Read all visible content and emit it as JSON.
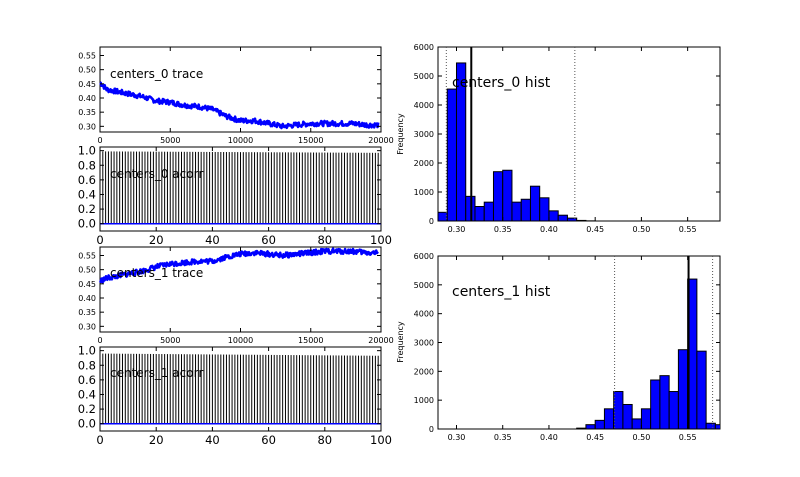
{
  "chart_data": [
    {
      "type": "line",
      "title": "centers_0 trace",
      "xlim": [
        0,
        20000
      ],
      "ylim": [
        0.28,
        0.58
      ],
      "xticks": [
        "0",
        "5000",
        "10000",
        "15000",
        "20000"
      ],
      "yticks": [
        "0.30",
        "0.35",
        "0.40",
        "0.45",
        "0.50",
        "0.55"
      ],
      "series": [
        {
          "color": "#0000ff",
          "x": [
            0,
            500,
            1000,
            2000,
            3000,
            4000,
            5000,
            6000,
            7000,
            8000,
            9000,
            10000,
            11000,
            12000,
            13000,
            14000,
            15000,
            16000,
            17000,
            18000,
            19000,
            19800
          ],
          "y": [
            0.455,
            0.43,
            0.425,
            0.415,
            0.405,
            0.39,
            0.385,
            0.375,
            0.37,
            0.36,
            0.335,
            0.32,
            0.32,
            0.31,
            0.3,
            0.305,
            0.31,
            0.31,
            0.31,
            0.31,
            0.305,
            0.305
          ]
        }
      ]
    },
    {
      "type": "bar",
      "title": "centers_0 acorr",
      "xlim": [
        0,
        100
      ],
      "ylim": [
        -0.1,
        1.05
      ],
      "xticks": [
        "0",
        "20",
        "40",
        "60",
        "80",
        "100"
      ],
      "yticks": [
        "0.0",
        "0.2",
        "0.4",
        "0.6",
        "0.8",
        "1.0"
      ],
      "lag_start": 1,
      "lag_end": 99,
      "acorr_start": 0.99,
      "acorr_end": 0.97,
      "line_color": "#000000",
      "zero_line_color": "#0000ff"
    },
    {
      "type": "line",
      "title": "centers_1 trace",
      "xlim": [
        0,
        20000
      ],
      "ylim": [
        0.28,
        0.58
      ],
      "xticks": [
        "0",
        "5000",
        "10000",
        "15000",
        "20000"
      ],
      "yticks": [
        "0.30",
        "0.35",
        "0.40",
        "0.45",
        "0.50",
        "0.55"
      ],
      "series": [
        {
          "color": "#0000ff",
          "x": [
            0,
            500,
            1000,
            2000,
            3000,
            4000,
            5000,
            6000,
            7000,
            8000,
            9000,
            10000,
            11000,
            12000,
            13000,
            14000,
            15000,
            16000,
            17000,
            18000,
            19000,
            19800
          ],
          "y": [
            0.46,
            0.47,
            0.475,
            0.485,
            0.495,
            0.51,
            0.52,
            0.525,
            0.53,
            0.53,
            0.545,
            0.555,
            0.56,
            0.555,
            0.55,
            0.555,
            0.56,
            0.565,
            0.565,
            0.565,
            0.56,
            0.56
          ]
        }
      ]
    },
    {
      "type": "bar",
      "title": "centers_1 acorr",
      "xlim": [
        0,
        100
      ],
      "ylim": [
        -0.1,
        1.05
      ],
      "xticks": [
        "0",
        "20",
        "40",
        "60",
        "80",
        "100"
      ],
      "yticks": [
        "0.0",
        "0.2",
        "0.4",
        "0.6",
        "0.8",
        "1.0"
      ],
      "lag_start": 1,
      "lag_end": 99,
      "acorr_start": 0.96,
      "acorr_end": 0.93,
      "line_color": "#000000",
      "zero_line_color": "#0000ff"
    },
    {
      "type": "bar",
      "title": "centers_0 hist",
      "ylabel": "Frequency",
      "xlim": [
        0.28,
        0.585
      ],
      "ylim": [
        0,
        6000
      ],
      "xticks": [
        "0.30",
        "0.35",
        "0.40",
        "0.45",
        "0.50",
        "0.55"
      ],
      "yticks": [
        "0",
        "1000",
        "2000",
        "3000",
        "4000",
        "5000",
        "6000"
      ],
      "bin_edges": [
        0.28,
        0.29,
        0.3,
        0.31,
        0.32,
        0.33,
        0.34,
        0.35,
        0.36,
        0.37,
        0.38,
        0.39,
        0.4,
        0.41,
        0.42,
        0.43,
        0.44,
        0.45,
        0.46,
        0.47
      ],
      "counts": [
        300,
        4550,
        5450,
        850,
        500,
        650,
        1700,
        1750,
        650,
        750,
        1200,
        800,
        350,
        200,
        100,
        20,
        5,
        0,
        0
      ],
      "bar_color": "#0000ff",
      "mean": 0.316,
      "ci_lower": 0.289,
      "ci_upper": 0.428
    },
    {
      "type": "bar",
      "title": "centers_1 hist",
      "ylabel": "Frequency",
      "xlim": [
        0.28,
        0.585
      ],
      "ylim": [
        0,
        6000
      ],
      "xticks": [
        "0.30",
        "0.35",
        "0.40",
        "0.45",
        "0.50",
        "0.55"
      ],
      "yticks": [
        "0",
        "1000",
        "2000",
        "3000",
        "4000",
        "5000",
        "6000"
      ],
      "bin_edges": [
        0.43,
        0.44,
        0.45,
        0.46,
        0.47,
        0.48,
        0.49,
        0.5,
        0.51,
        0.52,
        0.53,
        0.54,
        0.55,
        0.56,
        0.57,
        0.58,
        0.59
      ],
      "counts": [
        30,
        150,
        300,
        700,
        1300,
        850,
        350,
        700,
        1700,
        1850,
        1300,
        2750,
        5200,
        2700,
        200,
        150
      ],
      "bar_color": "#0000ff",
      "mean": 0.551,
      "ci_lower": 0.471,
      "ci_upper": 0.577
    }
  ]
}
